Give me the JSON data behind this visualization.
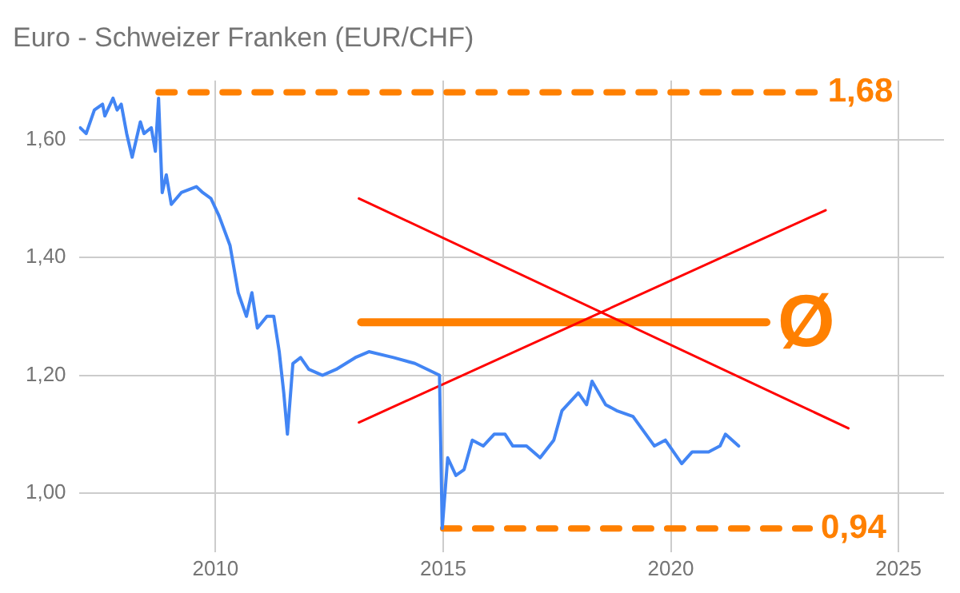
{
  "chart_data": {
    "type": "line",
    "title": "Euro - Schweizer Franken (EUR/CHF)",
    "xlim": [
      2007,
      2026
    ],
    "xticks": [
      2010,
      2015,
      2020,
      2025
    ],
    "ylim": [
      0.9,
      1.7
    ],
    "yticks": [
      {
        "value": 1.0,
        "label": "1,00"
      },
      {
        "value": 1.2,
        "label": "1,20"
      },
      {
        "value": 1.4,
        "label": "1,40"
      },
      {
        "value": 1.6,
        "label": "1,60"
      }
    ],
    "grid": true,
    "legend": false,
    "marker": "none",
    "series": [
      {
        "color": "#4285f4",
        "line_style": "solid",
        "x": [
          2007.03,
          2007.16,
          2007.34,
          2007.52,
          2007.57,
          2007.75,
          2007.84,
          2007.93,
          2008.05,
          2008.17,
          2008.35,
          2008.43,
          2008.59,
          2008.68,
          2008.75,
          2008.83,
          2008.92,
          2009.03,
          2009.25,
          2009.58,
          2009.72,
          2009.9,
          2010.08,
          2010.32,
          2010.5,
          2010.68,
          2010.8,
          2010.92,
          2011.13,
          2011.28,
          2011.4,
          2011.5,
          2011.58,
          2011.7,
          2011.87,
          2012.05,
          2012.35,
          2012.65,
          2013.07,
          2013.37,
          2013.91,
          2014.38,
          2014.92,
          2014.98,
          2015.1,
          2015.28,
          2015.46,
          2015.64,
          2015.88,
          2016.12,
          2016.36,
          2016.53,
          2016.83,
          2017.13,
          2017.43,
          2017.61,
          2017.97,
          2018.15,
          2018.27,
          2018.57,
          2018.81,
          2019.17,
          2019.64,
          2019.88,
          2020.24,
          2020.47,
          2020.83,
          2021.08,
          2021.2,
          2021.49
        ],
        "values": [
          1.62,
          1.61,
          1.65,
          1.66,
          1.64,
          1.67,
          1.65,
          1.66,
          1.61,
          1.57,
          1.63,
          1.61,
          1.62,
          1.58,
          1.67,
          1.51,
          1.54,
          1.49,
          1.51,
          1.52,
          1.51,
          1.5,
          1.47,
          1.42,
          1.34,
          1.3,
          1.34,
          1.28,
          1.3,
          1.3,
          1.24,
          1.17,
          1.1,
          1.22,
          1.23,
          1.21,
          1.2,
          1.21,
          1.23,
          1.24,
          1.23,
          1.22,
          1.2,
          0.94,
          1.06,
          1.03,
          1.04,
          1.09,
          1.08,
          1.1,
          1.1,
          1.08,
          1.08,
          1.06,
          1.09,
          1.14,
          1.17,
          1.15,
          1.19,
          1.15,
          1.14,
          1.13,
          1.08,
          1.09,
          1.05,
          1.07,
          1.07,
          1.08,
          1.1,
          1.08
        ]
      },
      {
        "color": "#ff0000",
        "line_style": "solid",
        "x": [
          2013.15,
          2023.9
        ],
        "values": [
          1.5,
          1.11
        ]
      },
      {
        "color": "#ff0000",
        "line_style": "solid",
        "x": [
          2013.15,
          2023.4
        ],
        "values": [
          1.12,
          1.48
        ]
      },
      {
        "name": "Ø",
        "color": "#ff8000",
        "line_style": "solid",
        "x": [
          2013.2,
          2022.1
        ],
        "values": [
          1.29,
          1.29
        ]
      },
      {
        "name": "1,68",
        "color": "#ff8000",
        "line_style": "dashed",
        "x": [
          2008.75,
          2023.2
        ],
        "values": [
          1.68,
          1.68
        ]
      },
      {
        "name": "0,94",
        "color": "#ff8000",
        "line_style": "dashed",
        "x": [
          2015.0,
          2023.05
        ],
        "values": [
          0.94,
          0.94
        ]
      }
    ]
  }
}
